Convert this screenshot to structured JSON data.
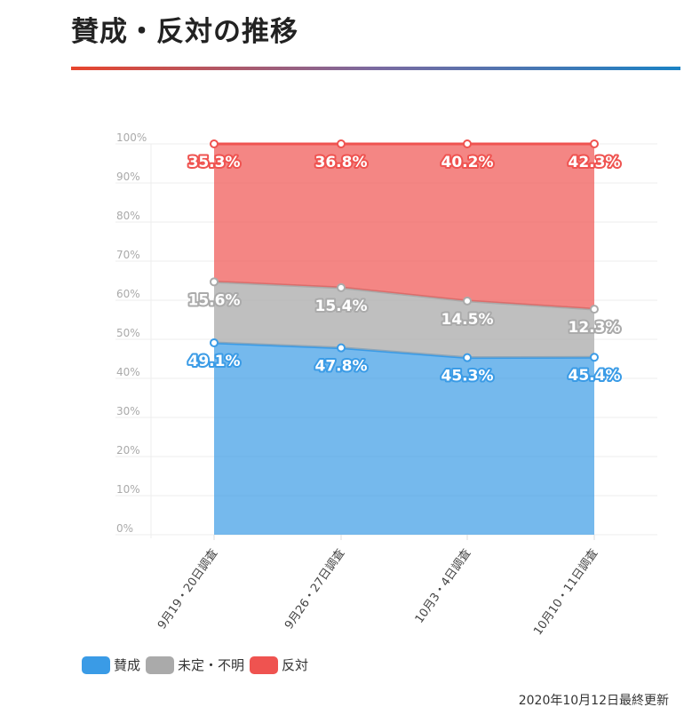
{
  "title": "賛成・反対の推移",
  "updated": "2020年10月12日最終更新",
  "chart_data": {
    "type": "area",
    "stacked": true,
    "categories": [
      "9月19・20日調査",
      "9月26・27日調査",
      "10月3・4日調査",
      "10月10・11日調査"
    ],
    "series": [
      {
        "name": "賛成",
        "color": "#3a9be6",
        "values": [
          49.1,
          47.8,
          45.3,
          45.4
        ]
      },
      {
        "name": "未定・不明",
        "color": "#aaaaaa",
        "values": [
          15.6,
          15.4,
          14.5,
          12.3
        ]
      },
      {
        "name": "反対",
        "color": "#ef5350",
        "values": [
          35.3,
          36.8,
          40.2,
          42.3
        ]
      }
    ],
    "ylim": [
      0,
      100
    ],
    "yticks": [
      "0%",
      "10%",
      "20%",
      "30%",
      "40%",
      "50%",
      "60%",
      "70%",
      "80%",
      "90%",
      "100%"
    ],
    "grid": true,
    "legend": "bottom-left"
  }
}
